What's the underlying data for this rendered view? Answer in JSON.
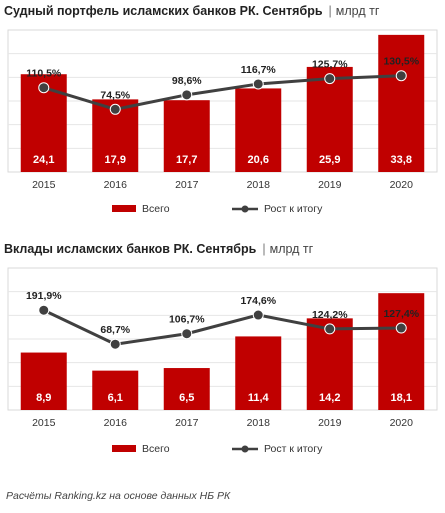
{
  "chart_data": [
    {
      "type": "bar+line",
      "title": "Судный портфель исламских банков РК. Сентябрь",
      "unit": "млрд тг",
      "categories": [
        "2015",
        "2016",
        "2017",
        "2018",
        "2019",
        "2020"
      ],
      "series": [
        {
          "name": "Всего",
          "type": "bar",
          "color": "#c00000",
          "values": [
            24.1,
            17.9,
            17.7,
            20.6,
            25.9,
            33.8
          ],
          "labels": [
            "24,1",
            "17,9",
            "17,7",
            "20,6",
            "25,9",
            "33,8"
          ]
        },
        {
          "name": "Рост к итогу",
          "type": "line",
          "color": "#404040",
          "values": [
            110.5,
            74.5,
            98.6,
            116.7,
            125.7,
            130.5
          ],
          "labels": [
            "110,5%",
            "74,5%",
            "98,6%",
            "116,7%",
            "125,7%",
            "130,5%"
          ]
        }
      ],
      "legend": "bottom",
      "grid": true
    },
    {
      "type": "bar+line",
      "title": "Вклады исламских банков РК. Сентябрь",
      "unit": "млрд тг",
      "categories": [
        "2015",
        "2016",
        "2017",
        "2018",
        "2019",
        "2020"
      ],
      "series": [
        {
          "name": "Всего",
          "type": "bar",
          "color": "#c00000",
          "values": [
            8.9,
            6.1,
            6.5,
            11.4,
            14.2,
            18.1
          ],
          "labels": [
            "8,9",
            "6,1",
            "6,5",
            "11,4",
            "14,2",
            "18,1"
          ]
        },
        {
          "name": "Рост к итогу",
          "type": "line",
          "color": "#404040",
          "values": [
            191.9,
            68.7,
            106.7,
            174.6,
            124.2,
            127.4
          ],
          "labels": [
            "191,9%",
            "68,7%",
            "106,7%",
            "174,6%",
            "124,2%",
            "127,4%"
          ]
        }
      ],
      "legend": "bottom",
      "grid": true
    }
  ],
  "footer": "Расчёты Ranking.kz на основе данных НБ РК"
}
